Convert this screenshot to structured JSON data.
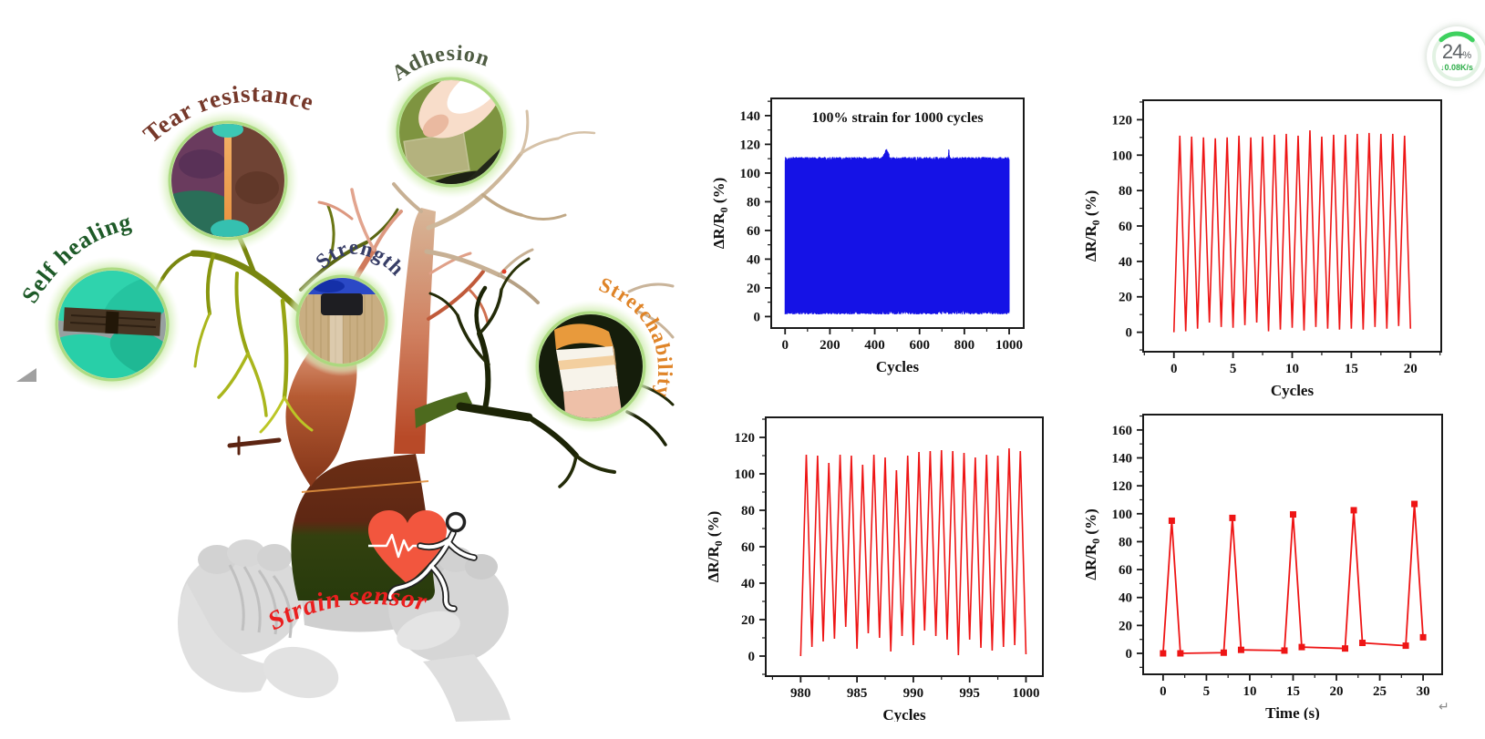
{
  "page": {
    "background": "#ffffff"
  },
  "status_widget": {
    "percent_value": "24",
    "percent_unit": "%",
    "net_speed": "↓0.08K/s",
    "ring_value": 24,
    "ring_color": "#3ed15f",
    "ring_track": "#e2f2e3"
  },
  "paragraph_mark": "↵",
  "illustration": {
    "branch_labels": [
      {
        "id": "tear-resistance",
        "text": "Tear resistance",
        "color": "#76382a"
      },
      {
        "id": "adhesion",
        "text": "Adhesion",
        "color": "#4e5c42"
      },
      {
        "id": "self-healing",
        "text": "Self healing",
        "color": "#1e5a28"
      },
      {
        "id": "strength",
        "text": "Strength",
        "color": "#373d66"
      },
      {
        "id": "stretchability",
        "text": "Stretchability",
        "color": "#df8428"
      },
      {
        "id": "strain-sensor",
        "text": "Strain sensor",
        "color": "#ea1f1f"
      }
    ]
  },
  "chart_data": [
    {
      "type": "line",
      "series_color": "#1512e6",
      "title": "100% strain for 1000 cycles",
      "xlabel": "Cycles",
      "ylabel_pre": "ΔR/R",
      "ylabel_sub": "0",
      "ylabel_post": " (%)",
      "x_ticks": [
        0,
        200,
        400,
        600,
        800,
        1000
      ],
      "y_ticks": [
        0,
        20,
        40,
        60,
        80,
        100,
        120,
        140
      ],
      "x_minor_step": 100,
      "y_minor_step": 10,
      "xlim": [
        -62,
        1065
      ],
      "ylim": [
        -8,
        152
      ],
      "grid": false,
      "legend": null,
      "dense_cycles": {
        "n": 1000,
        "peak": 110,
        "peak_jitter": 1.2,
        "valley": 1.5,
        "valley_jitter": 2.2,
        "anomaly_peaks": [
          {
            "center": 452,
            "width": 18,
            "height": 6
          },
          {
            "center": 731,
            "width": 4,
            "height": 6
          }
        ],
        "noisy_valley_zones": [
          {
            "from": 50,
            "to": 95,
            "extra": 9
          },
          {
            "from": 435,
            "to": 540,
            "extra": 7
          },
          {
            "from": 700,
            "to": 820,
            "extra": 8
          }
        ]
      }
    },
    {
      "type": "line",
      "series_color": "#ee1515",
      "xlabel": "Cycles",
      "ylabel_pre": "ΔR/R",
      "ylabel_sub": "0",
      "ylabel_post": " (%)",
      "x_ticks": [
        0,
        5,
        10,
        15,
        20
      ],
      "y_ticks": [
        0,
        20,
        40,
        60,
        80,
        100,
        120
      ],
      "x_minor_step": 2.5,
      "y_minor_step": 10,
      "xlim": [
        -2.6,
        22.6
      ],
      "ylim": [
        -11,
        131
      ],
      "grid": false,
      "legend": null,
      "cycles": {
        "x_start": 0,
        "period": 1,
        "start_y": 0,
        "end_y": 2,
        "peaks": [
          111,
          110.5,
          110,
          109.5,
          110,
          111,
          110,
          110.5,
          111.5,
          112,
          111,
          114,
          110.5,
          111.5,
          111.5,
          112,
          112.5,
          112,
          112,
          111
        ],
        "valleys": [
          0.5,
          2,
          5.5,
          3,
          2.5,
          4,
          5.5,
          0.5,
          1.5,
          2.5,
          1,
          3,
          2,
          1.5,
          2,
          1.5,
          3,
          2,
          3.5
        ]
      }
    },
    {
      "type": "line",
      "series_color": "#ee1515",
      "xlabel": "Cycles",
      "ylabel_pre": "ΔR/R",
      "ylabel_sub": "0",
      "ylabel_post": " (%)",
      "x_ticks": [
        980,
        985,
        990,
        995,
        1000
      ],
      "y_ticks": [
        0,
        20,
        40,
        60,
        80,
        100,
        120
      ],
      "x_minor_step": 2.5,
      "y_minor_step": 10,
      "xlim": [
        976.9,
        1001.5
      ],
      "ylim": [
        -11,
        131
      ],
      "grid": false,
      "legend": null,
      "cycles": {
        "x_start": 980,
        "period": 1,
        "start_y": 0,
        "end_y": 1,
        "peaks": [
          110.5,
          110,
          106,
          110.5,
          110,
          105,
          110.5,
          109,
          102,
          110,
          112,
          112.5,
          113,
          112.5,
          111.5,
          109,
          110.5,
          110,
          114,
          112.5
        ],
        "valleys": [
          5,
          8,
          9.5,
          16,
          4,
          12.5,
          10,
          2.5,
          11,
          6,
          14,
          11,
          9,
          0.5,
          9,
          4.5,
          3,
          5,
          6
        ]
      }
    },
    {
      "type": "scatter-line",
      "marker": "square",
      "series_color": "#ee1515",
      "xlabel": "Time (s)",
      "ylabel_pre": "ΔR/R",
      "ylabel_sub": "0",
      "ylabel_post": " (%)",
      "x_ticks": [
        0,
        5,
        10,
        15,
        20,
        25,
        30
      ],
      "y_ticks": [
        0,
        20,
        40,
        60,
        80,
        100,
        120,
        140,
        160
      ],
      "x_minor_step": 2.5,
      "y_minor_step": 10,
      "xlim": [
        -2.3,
        32.2
      ],
      "ylim": [
        -15,
        171
      ],
      "grid": false,
      "legend": null,
      "points": [
        [
          0,
          0
        ],
        [
          1,
          95
        ],
        [
          2,
          0
        ],
        [
          7,
          0.5
        ],
        [
          8,
          97
        ],
        [
          9,
          2.5
        ],
        [
          14,
          2
        ],
        [
          15,
          99.5
        ],
        [
          16,
          4.5
        ],
        [
          21,
          3.5
        ],
        [
          22,
          102.5
        ],
        [
          23,
          7.5
        ],
        [
          28,
          5.5
        ],
        [
          29,
          107
        ],
        [
          30,
          11.5
        ]
      ]
    }
  ]
}
